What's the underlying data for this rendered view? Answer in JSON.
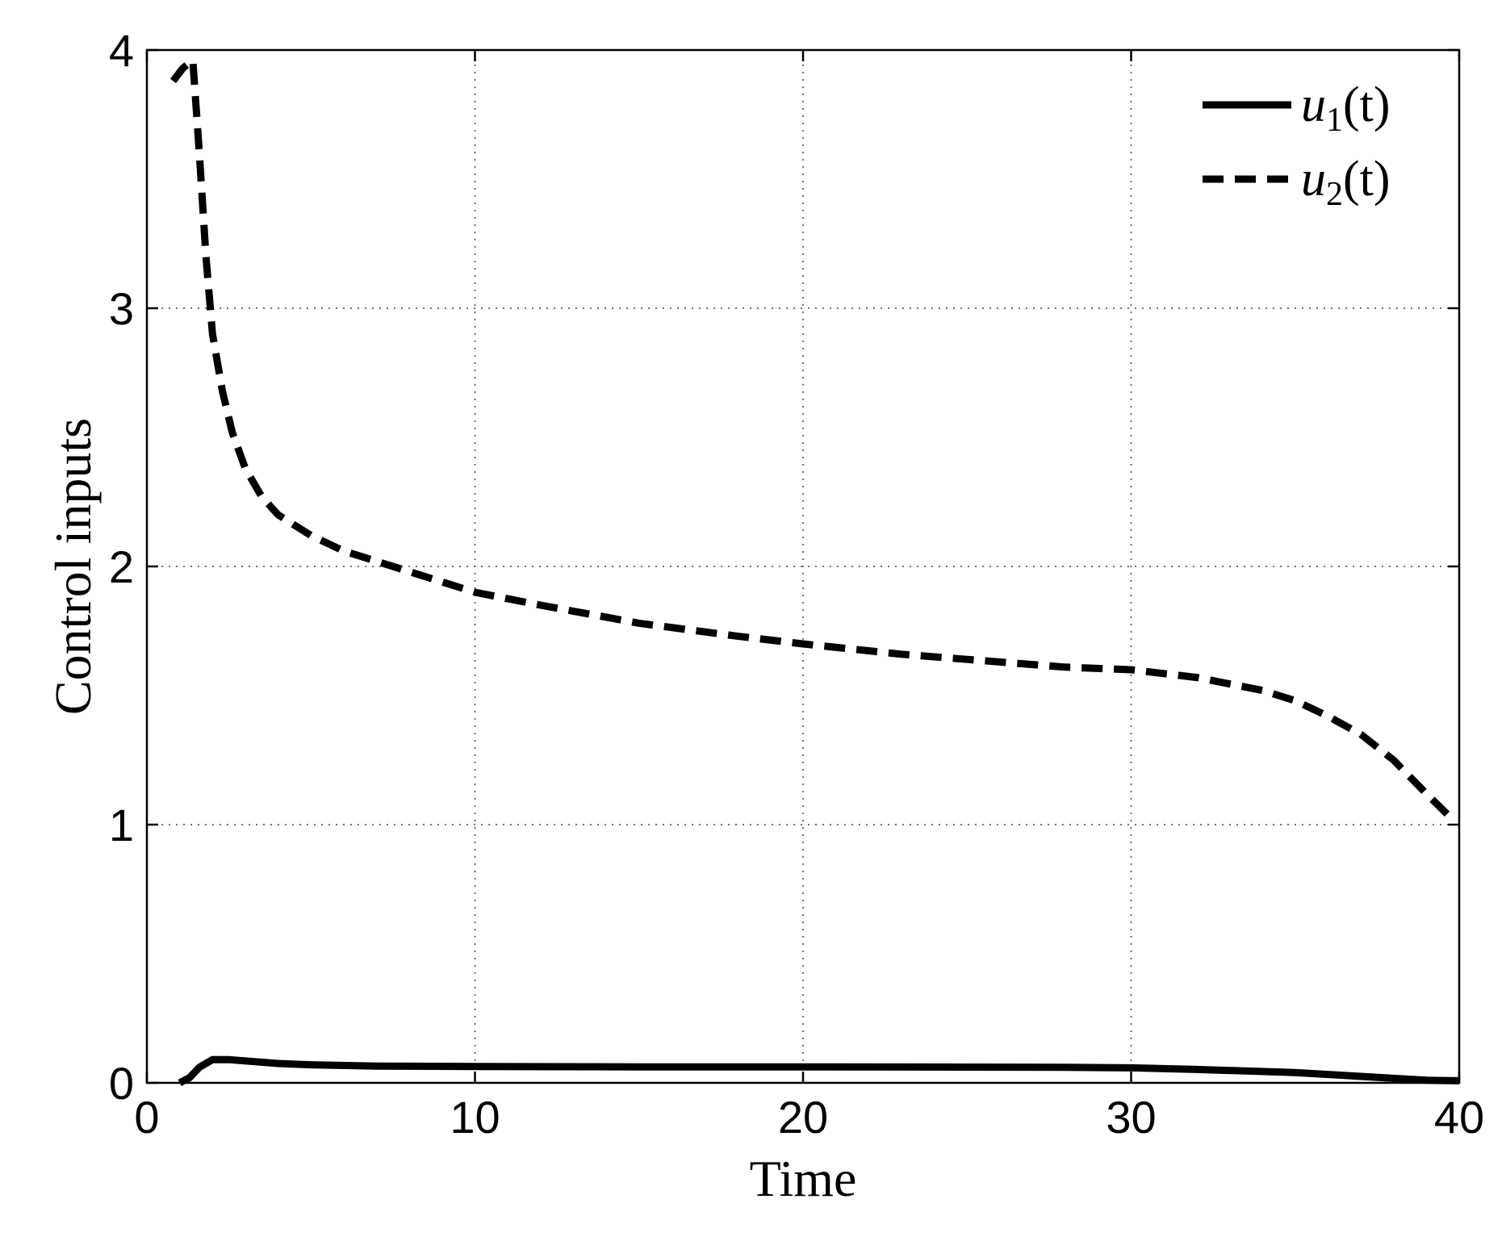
{
  "chart_data": {
    "type": "line",
    "title": "",
    "xlabel": "Time",
    "ylabel": "Control inputs",
    "xlim": [
      0,
      40
    ],
    "ylim": [
      0,
      4
    ],
    "xticks": [
      0,
      10,
      20,
      30,
      40
    ],
    "yticks": [
      0,
      1,
      2,
      3,
      4
    ],
    "x_tick_labels": [
      "0",
      "10",
      "20",
      "30",
      "40"
    ],
    "y_tick_labels": [
      "0",
      "1",
      "2",
      "3",
      "4"
    ],
    "grid": true,
    "legend_position": "top-right",
    "series": [
      {
        "name": "u1(t)",
        "name_base": "u",
        "name_sub": "1",
        "name_arg": "(t)",
        "style": "solid",
        "color": "#000000",
        "x": [
          1.0,
          1.3,
          1.6,
          2.0,
          2.5,
          3.0,
          4.0,
          5.0,
          7.0,
          10.0,
          15.0,
          20.0,
          25.0,
          28.0,
          30.0,
          32.0,
          35.0,
          37.0,
          39.0,
          40.0
        ],
        "y": [
          0.0,
          0.02,
          0.06,
          0.09,
          0.09,
          0.085,
          0.075,
          0.07,
          0.065,
          0.063,
          0.062,
          0.062,
          0.061,
          0.06,
          0.058,
          0.052,
          0.04,
          0.025,
          0.01,
          0.008
        ]
      },
      {
        "name": "u2(t)",
        "name_base": "u",
        "name_sub": "2",
        "name_arg": "(t)",
        "style": "dashed",
        "color": "#000000",
        "x": [
          0.8,
          1.1,
          1.4,
          1.6,
          1.8,
          2.0,
          2.3,
          2.6,
          3.0,
          3.5,
          4.0,
          5.0,
          6.0,
          7.0,
          8.0,
          10.0,
          12.0,
          15.0,
          18.0,
          20.0,
          23.0,
          25.0,
          28.0,
          30.0,
          32.0,
          34.0,
          35.0,
          36.0,
          37.0,
          38.0,
          39.0,
          39.8
        ],
        "y": [
          3.88,
          3.93,
          3.96,
          3.6,
          3.2,
          2.9,
          2.68,
          2.52,
          2.38,
          2.27,
          2.2,
          2.12,
          2.06,
          2.02,
          1.98,
          1.9,
          1.85,
          1.78,
          1.73,
          1.7,
          1.66,
          1.64,
          1.61,
          1.6,
          1.57,
          1.52,
          1.48,
          1.42,
          1.35,
          1.25,
          1.12,
          1.02
        ]
      }
    ]
  }
}
